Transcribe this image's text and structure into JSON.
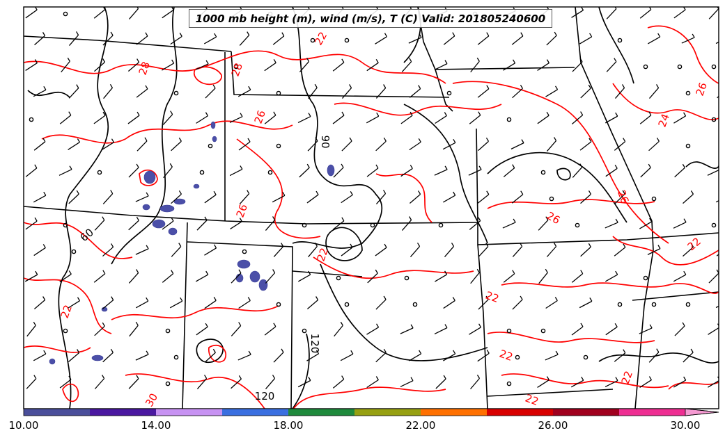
{
  "title": "1000 mb height (m), wind (m/s), T (C) Valid: 201805240600",
  "colors": {
    "temperature_contour": "#ff0000",
    "height_contour": "#000000",
    "state_borders": "#000000"
  },
  "contour_labels": {
    "temperature": [
      "22",
      "28",
      "28",
      "26",
      "26",
      "22",
      "26",
      "24",
      "26",
      "22",
      "22",
      "22",
      "22",
      "22",
      "30",
      "26",
      "22"
    ],
    "height": [
      "90",
      "60",
      "120",
      "120"
    ]
  },
  "colorbar": {
    "tick_labels": [
      "10.00",
      "14.00",
      "18.00",
      "22.00",
      "26.00",
      "30.00"
    ],
    "segments": [
      "#4a4e9a",
      "#4a18a0",
      "#c792f2",
      "#3a6fe0",
      "#1f8a3c",
      "#96a012",
      "#ff7000",
      "#d80000",
      "#a0001e",
      "#ee2e92"
    ],
    "extend_color": "#f59ad2"
  },
  "shading_color": "#4b4fa8"
}
